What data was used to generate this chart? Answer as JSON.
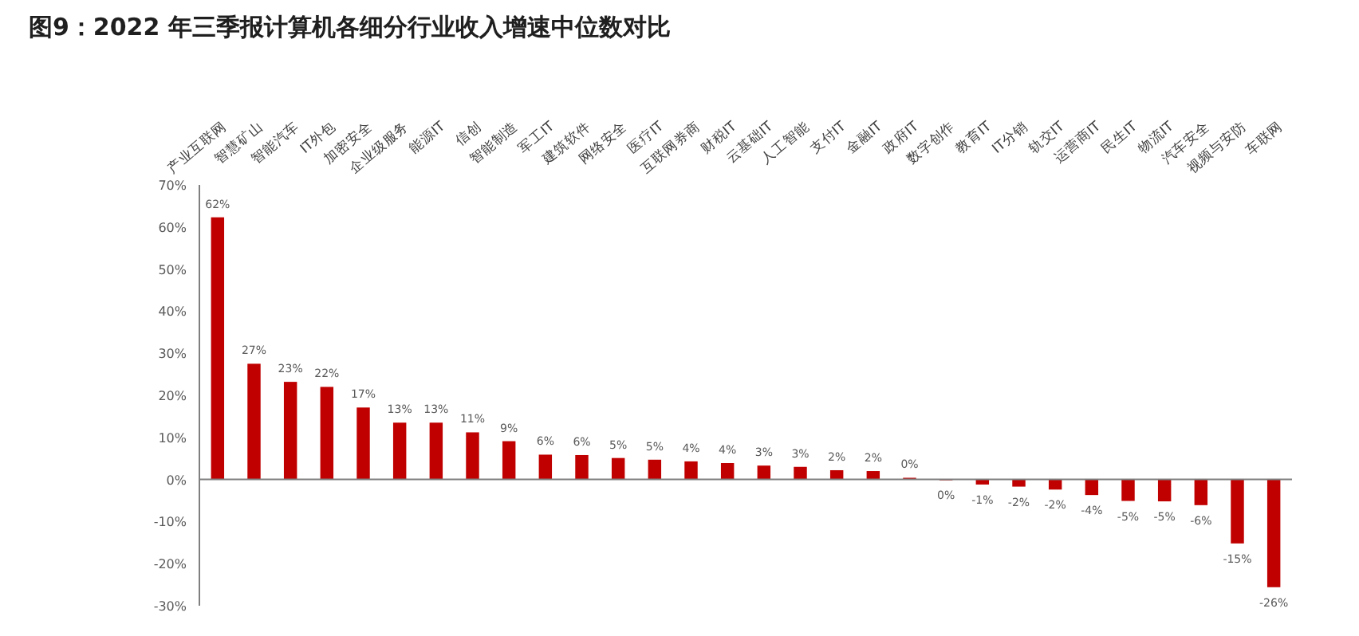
{
  "chart_data": {
    "type": "bar",
    "title": "图9：2022 年三季报计算机各细分行业收入增速中位数对比",
    "categories": [
      "产业互联网",
      "智慧矿山",
      "智能汽车",
      "IT外包",
      "加密安全",
      "企业级服务",
      "能源IT",
      "信创",
      "智能制造",
      "军工IT",
      "建筑软件",
      "网络安全",
      "医疗IT",
      "互联网券商",
      "财税IT",
      "云基础IT",
      "人工智能",
      "支付IT",
      "金融IT",
      "政府IT",
      "数字创作",
      "教育IT",
      "IT分销",
      "轨交IT",
      "运营商IT",
      "民生IT",
      "物流IT",
      "汽车安全",
      "视频与安防",
      "车联网"
    ],
    "values": [
      62.3,
      27.5,
      23.2,
      22,
      17.1,
      13.5,
      13.5,
      11.2,
      9.1,
      5.9,
      5.8,
      5.1,
      4.7,
      4.3,
      3.9,
      3.3,
      3.0,
      2.2,
      2.0,
      0.4,
      -0.1,
      -1.2,
      -1.7,
      -2.4,
      -3.7,
      -5.1,
      -5.2,
      -6.1,
      -15.2,
      -25.6
    ],
    "value_labels": [
      "62%",
      "27%",
      "23%",
      "22%",
      "17%",
      "13%",
      "13%",
      "11%",
      "9%",
      "6%",
      "6%",
      "5%",
      "5%",
      "4%",
      "4%",
      "3%",
      "3%",
      "2%",
      "2%",
      "0%",
      "0%",
      "-1%",
      "-2%",
      "-2%",
      "-4%",
      "-5%",
      "-5%",
      "-6%",
      "-15%",
      "-26%"
    ],
    "color": "#c00000",
    "ylim": [
      -30,
      70
    ],
    "yticks": [
      {
        "value": 70,
        "label": "70%"
      },
      {
        "value": 60,
        "label": "60%"
      },
      {
        "value": 50,
        "label": "50%"
      },
      {
        "value": 40,
        "label": "40%"
      },
      {
        "value": 30,
        "label": "30%"
      },
      {
        "value": 20,
        "label": "20%"
      },
      {
        "value": 10,
        "label": "10%"
      },
      {
        "value": 0,
        "label": "0%"
      },
      {
        "value": -10,
        "label": "-10%"
      },
      {
        "value": -20,
        "label": "-20%"
      },
      {
        "value": -30,
        "label": "-30%"
      }
    ]
  }
}
